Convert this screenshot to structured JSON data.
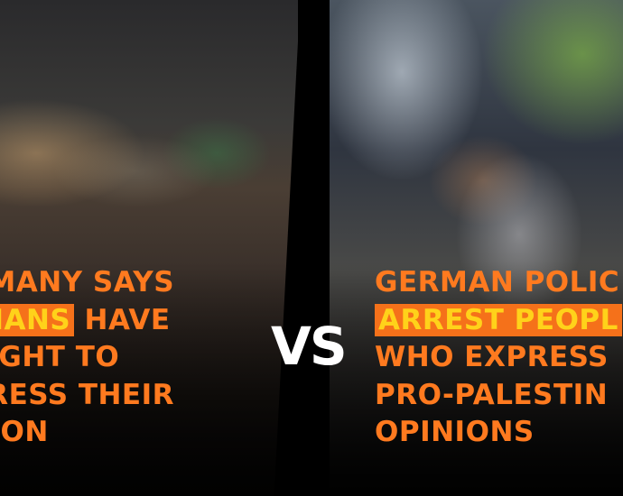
{
  "left_caption": {
    "line1": "RMANY SAYS",
    "line2_highlight": "NIANS",
    "line2_rest": " HAVE",
    "line3": " RIGHT TO",
    "line4": "PRESS THEIR",
    "line5": "NION"
  },
  "right_caption": {
    "line1": "GERMAN POLIC",
    "line2_highlight": "ARREST PEOPL",
    "line3": "WHO EXPRESS",
    "line4": "PRO-PALESTIN",
    "line5": "OPINIONS"
  },
  "center_label": "VS",
  "colors": {
    "text": "#ff7a1f",
    "highlight_bg": "#f5711a",
    "highlight_text": "#ffd21a",
    "vs": "#ffffff"
  }
}
